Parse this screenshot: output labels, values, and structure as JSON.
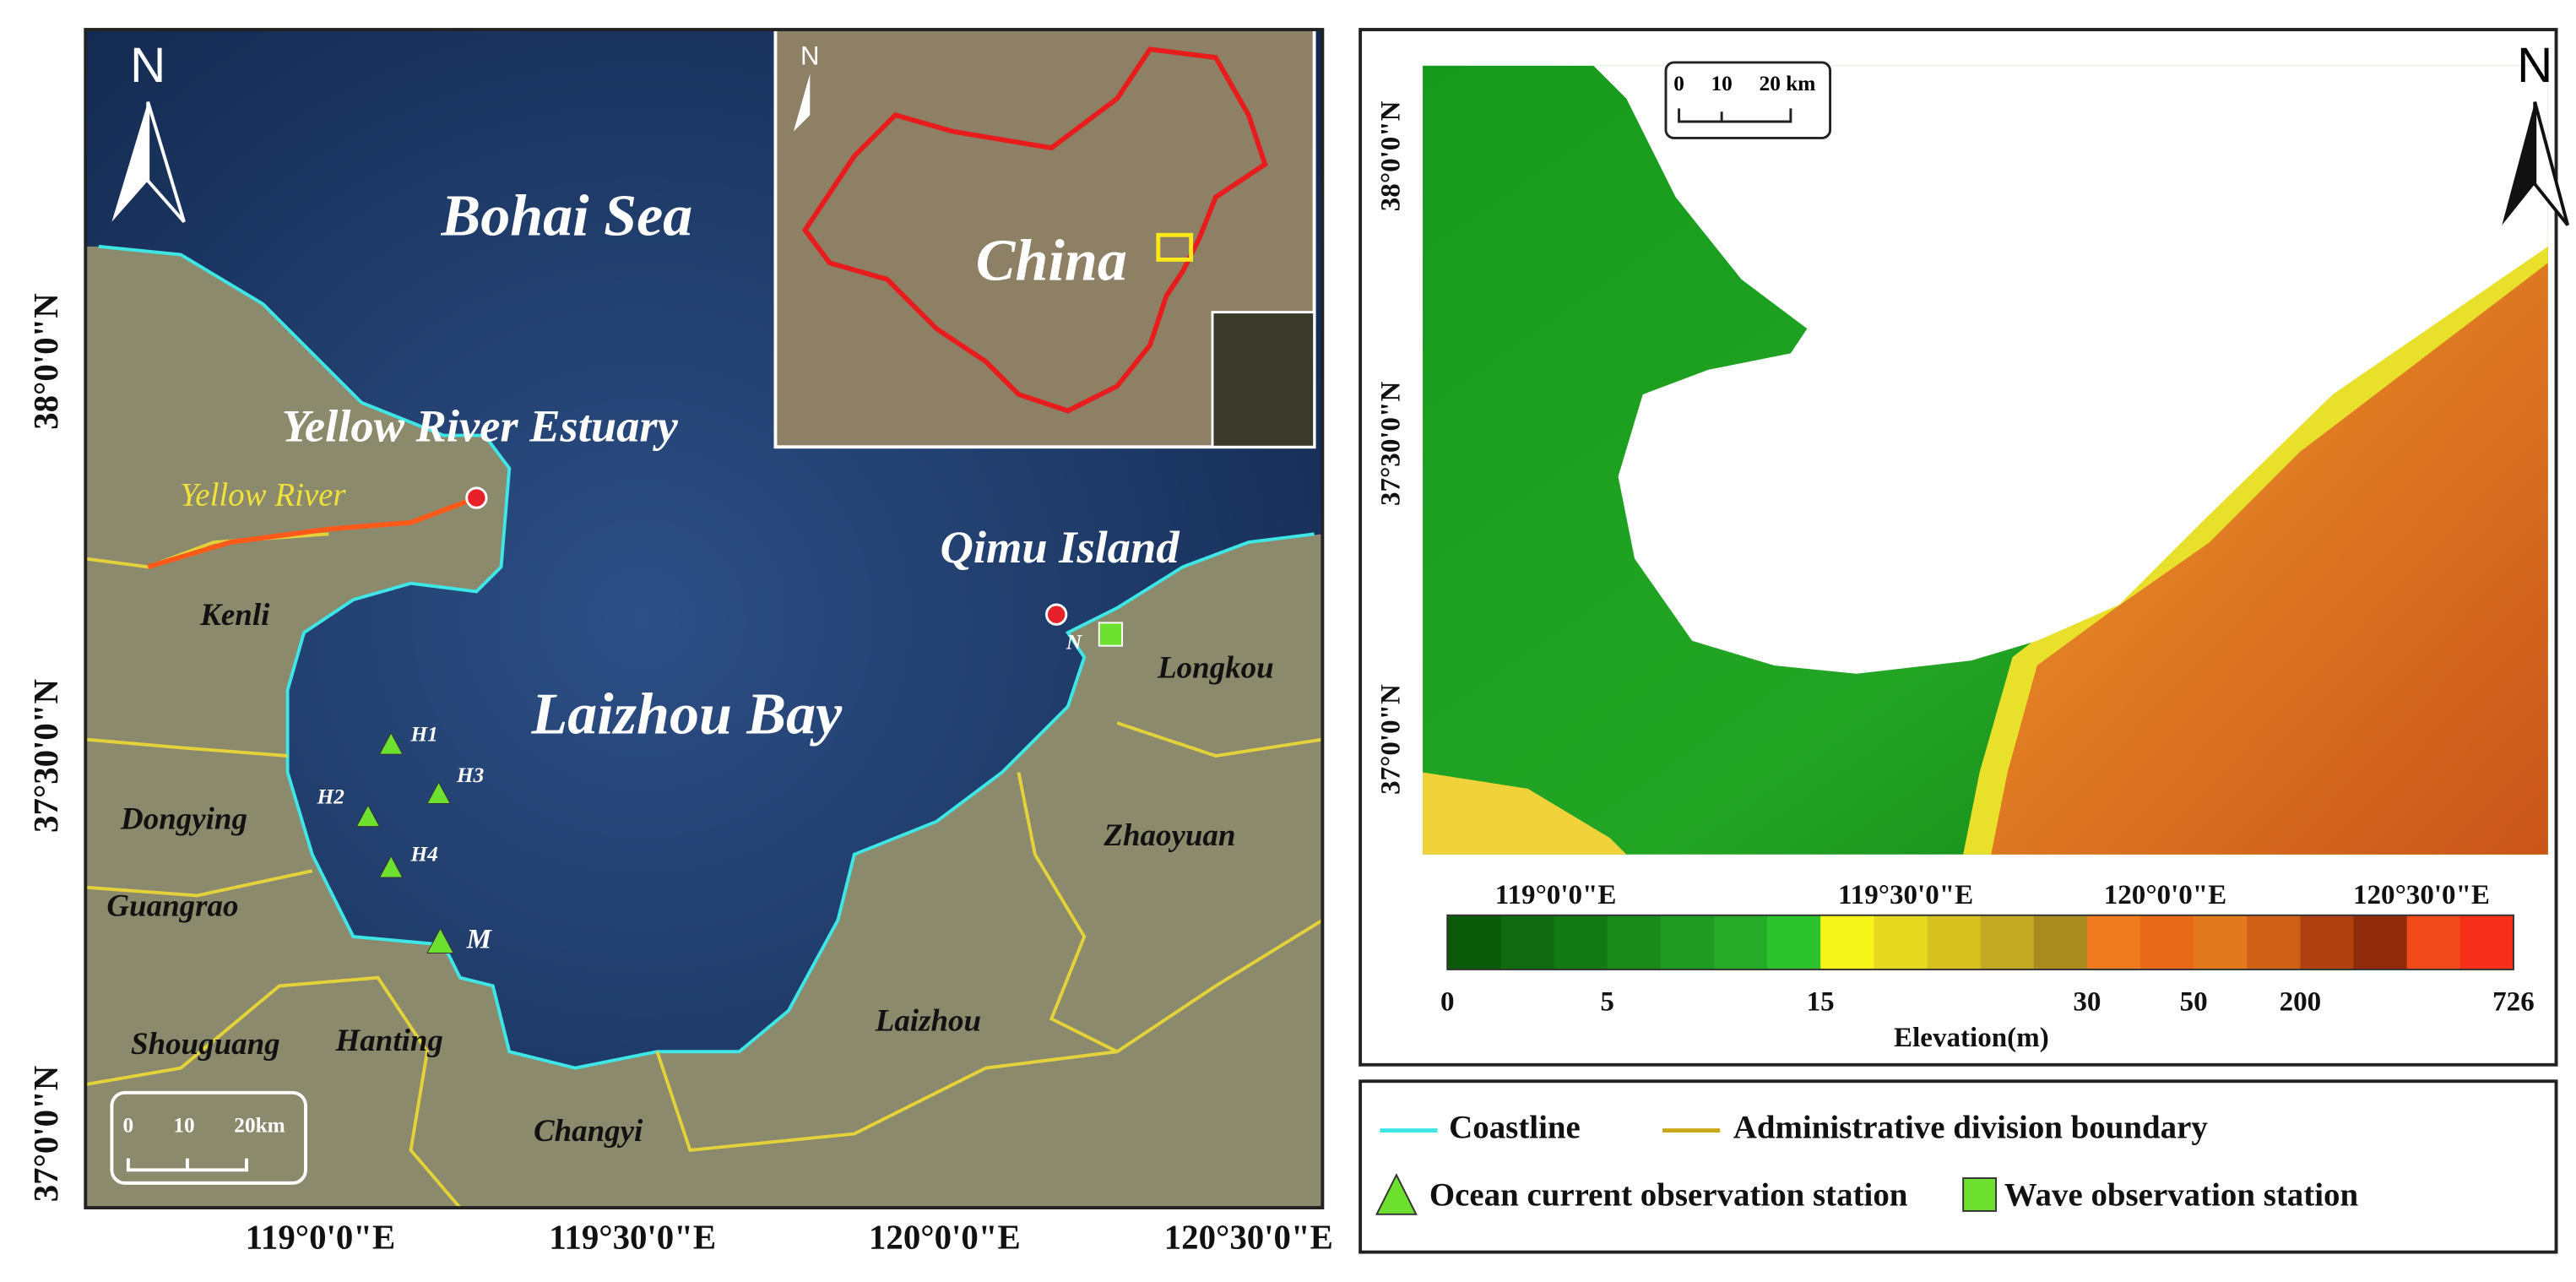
{
  "left_map": {
    "north": "N",
    "sea": "Bohai Sea",
    "estuary": "Yellow River Estuary",
    "river": "Yellow River",
    "bay": "Laizhou Bay",
    "island": "Qimu Island",
    "island_marker": "N",
    "counties": [
      "Kenli",
      "Dongying",
      "Guangrao",
      "Shouguang",
      "Hanting",
      "Changyi",
      "Laizhou",
      "Zhaoyuan",
      "Longkou"
    ],
    "stations": [
      "H1",
      "H2",
      "H3",
      "H4",
      "M"
    ],
    "lat_labels": [
      "38°0'0\"N",
      "37°30'0\"N",
      "37°0'0\"N"
    ],
    "lon_labels": [
      "119°0'0\"E",
      "119°30'0\"E",
      "120°0'0\"E",
      "120°30'0\"E"
    ],
    "scale": [
      "0",
      "10",
      "20km"
    ],
    "inset": {
      "label": "China",
      "north": "N"
    }
  },
  "right_map": {
    "north": "N",
    "lat_labels": [
      "38°0'0\"N",
      "37°30'0\"N",
      "37°0'0\"N"
    ],
    "lon_labels": [
      "119°0'0\"E",
      "119°30'0\"E",
      "120°0'0\"E",
      "120°30'0\"E"
    ],
    "scale": [
      "0",
      "10",
      "20 km"
    ],
    "elevation_title": "Elevation(m)",
    "elevation_ticks": [
      0,
      5,
      15,
      30,
      50,
      200,
      726
    ],
    "elevation_colors": [
      "#0a5a0a",
      "#0f6a10",
      "#147a15",
      "#1a8a1a",
      "#1f9a22",
      "#25ab28",
      "#2cc22c",
      "#f5f51a",
      "#e6d81f",
      "#d6c21f",
      "#c2ab22",
      "#a88c1f",
      "#f07a1e",
      "#e86a18",
      "#e07a1c",
      "#d06015",
      "#b04010",
      "#8f2a0a",
      "#f04a1a",
      "#f52f1a"
    ]
  },
  "legend": {
    "items": [
      "Coastline",
      "Administrative division boundary",
      "Ocean current observation station",
      "Wave observation station"
    ]
  }
}
